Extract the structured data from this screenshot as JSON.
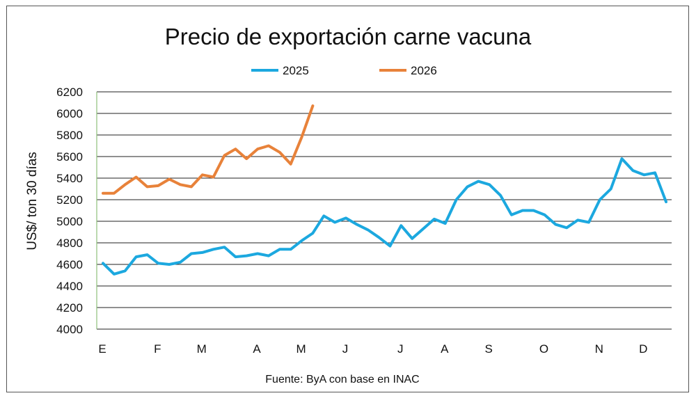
{
  "chart_data": {
    "type": "line",
    "title": "Precio de exportación carne vacuna",
    "ylabel": "US$/ ton 30 días",
    "xlabel": "",
    "source": "Fuente: ByA con base en INAC",
    "ylim": [
      4000,
      6200
    ],
    "y_ticks": [
      4000,
      4200,
      4400,
      4600,
      4800,
      5000,
      5200,
      5400,
      5600,
      5800,
      6000,
      6200
    ],
    "x_count": 52,
    "x_ticks": [
      {
        "label": "E",
        "index": 0
      },
      {
        "label": "F",
        "index": 5
      },
      {
        "label": "M",
        "index": 9
      },
      {
        "label": "A",
        "index": 14
      },
      {
        "label": "M",
        "index": 18
      },
      {
        "label": "J",
        "index": 22
      },
      {
        "label": "J",
        "index": 27
      },
      {
        "label": "A",
        "index": 31
      },
      {
        "label": "S",
        "index": 35
      },
      {
        "label": "O",
        "index": 40
      },
      {
        "label": "N",
        "index": 45
      },
      {
        "label": "D",
        "index": 49
      }
    ],
    "grid": "horizontal",
    "legend_position": "top",
    "series": [
      {
        "name": "2025",
        "color": "#1ca8df",
        "values": [
          4610,
          4510,
          4540,
          4670,
          4690,
          4610,
          4600,
          4620,
          4700,
          4710,
          4740,
          4760,
          4670,
          4680,
          4700,
          4680,
          4740,
          4740,
          4820,
          4890,
          5050,
          4990,
          5030,
          4970,
          4920,
          4850,
          4770,
          4960,
          4840,
          4930,
          5020,
          4980,
          5200,
          5320,
          5370,
          5340,
          5240,
          5060,
          5100,
          5100,
          5060,
          4970,
          4940,
          5010,
          4990,
          5200,
          5300,
          5580,
          5470,
          5430,
          5450,
          5180
        ]
      },
      {
        "name": "2026",
        "color": "#e8823a",
        "values": [
          5260,
          5260,
          5340,
          5410,
          5320,
          5330,
          5390,
          5340,
          5320,
          5430,
          5410,
          5610,
          5670,
          5580,
          5670,
          5700,
          5640,
          5530,
          5780,
          6070
        ]
      }
    ]
  }
}
